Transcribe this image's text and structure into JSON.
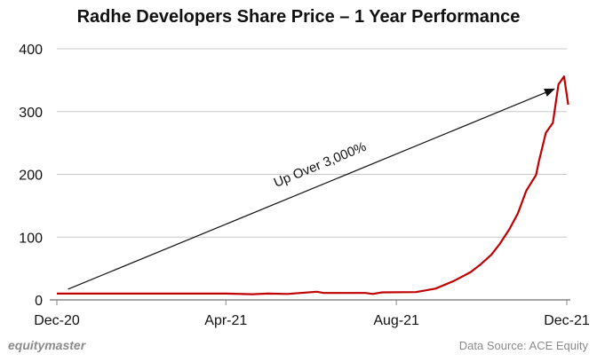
{
  "chart_data": {
    "type": "line",
    "title": "Radhe Developers Share Price – 1 Year Performance",
    "xlabel": "",
    "ylabel": "",
    "xlim": [
      "2020-12-01",
      "2021-12-01"
    ],
    "ylim": [
      0,
      400
    ],
    "x_ticks": [
      "Dec-20",
      "Apr-21",
      "Aug-21",
      "Dec-21"
    ],
    "x_tick_dates": [
      "2020-12-01",
      "2021-04-01",
      "2021-08-01",
      "2021-12-01"
    ],
    "y_ticks": [
      0,
      100,
      200,
      300,
      400
    ],
    "grid": "horizontal",
    "line_color": "#c00000",
    "series": [
      {
        "x": [
          "2020-12-01",
          "2021-02-01",
          "2021-04-01",
          "2021-04-20",
          "2021-05-01",
          "2021-05-15",
          "2021-06-05",
          "2021-06-10",
          "2021-07-10",
          "2021-07-15",
          "2021-07-22",
          "2021-08-15",
          "2021-08-29",
          "2021-09-11",
          "2021-09-23",
          "2021-09-30",
          "2021-10-08",
          "2021-10-14",
          "2021-10-21",
          "2021-10-27",
          "2021-11-02",
          "2021-11-09",
          "2021-11-11",
          "2021-11-16",
          "2021-11-21",
          "2021-11-25",
          "2021-11-29",
          "2021-12-02"
        ],
        "y": [
          10,
          10,
          10,
          9,
          10,
          9.5,
          13,
          11,
          11,
          9.5,
          12,
          12.5,
          18,
          30,
          44,
          56,
          72,
          89,
          113,
          138,
          174,
          199,
          220,
          266,
          282,
          343,
          356,
          311
        ]
      }
    ],
    "annotation": {
      "text": "Up Over 3,000%",
      "arrow_from": [
        "2020-12-09",
        17
      ],
      "arrow_to": [
        "2021-11-22",
        336
      ]
    }
  },
  "footer": {
    "brand": "equitymaster",
    "source": "Data Source: ACE Equity"
  }
}
